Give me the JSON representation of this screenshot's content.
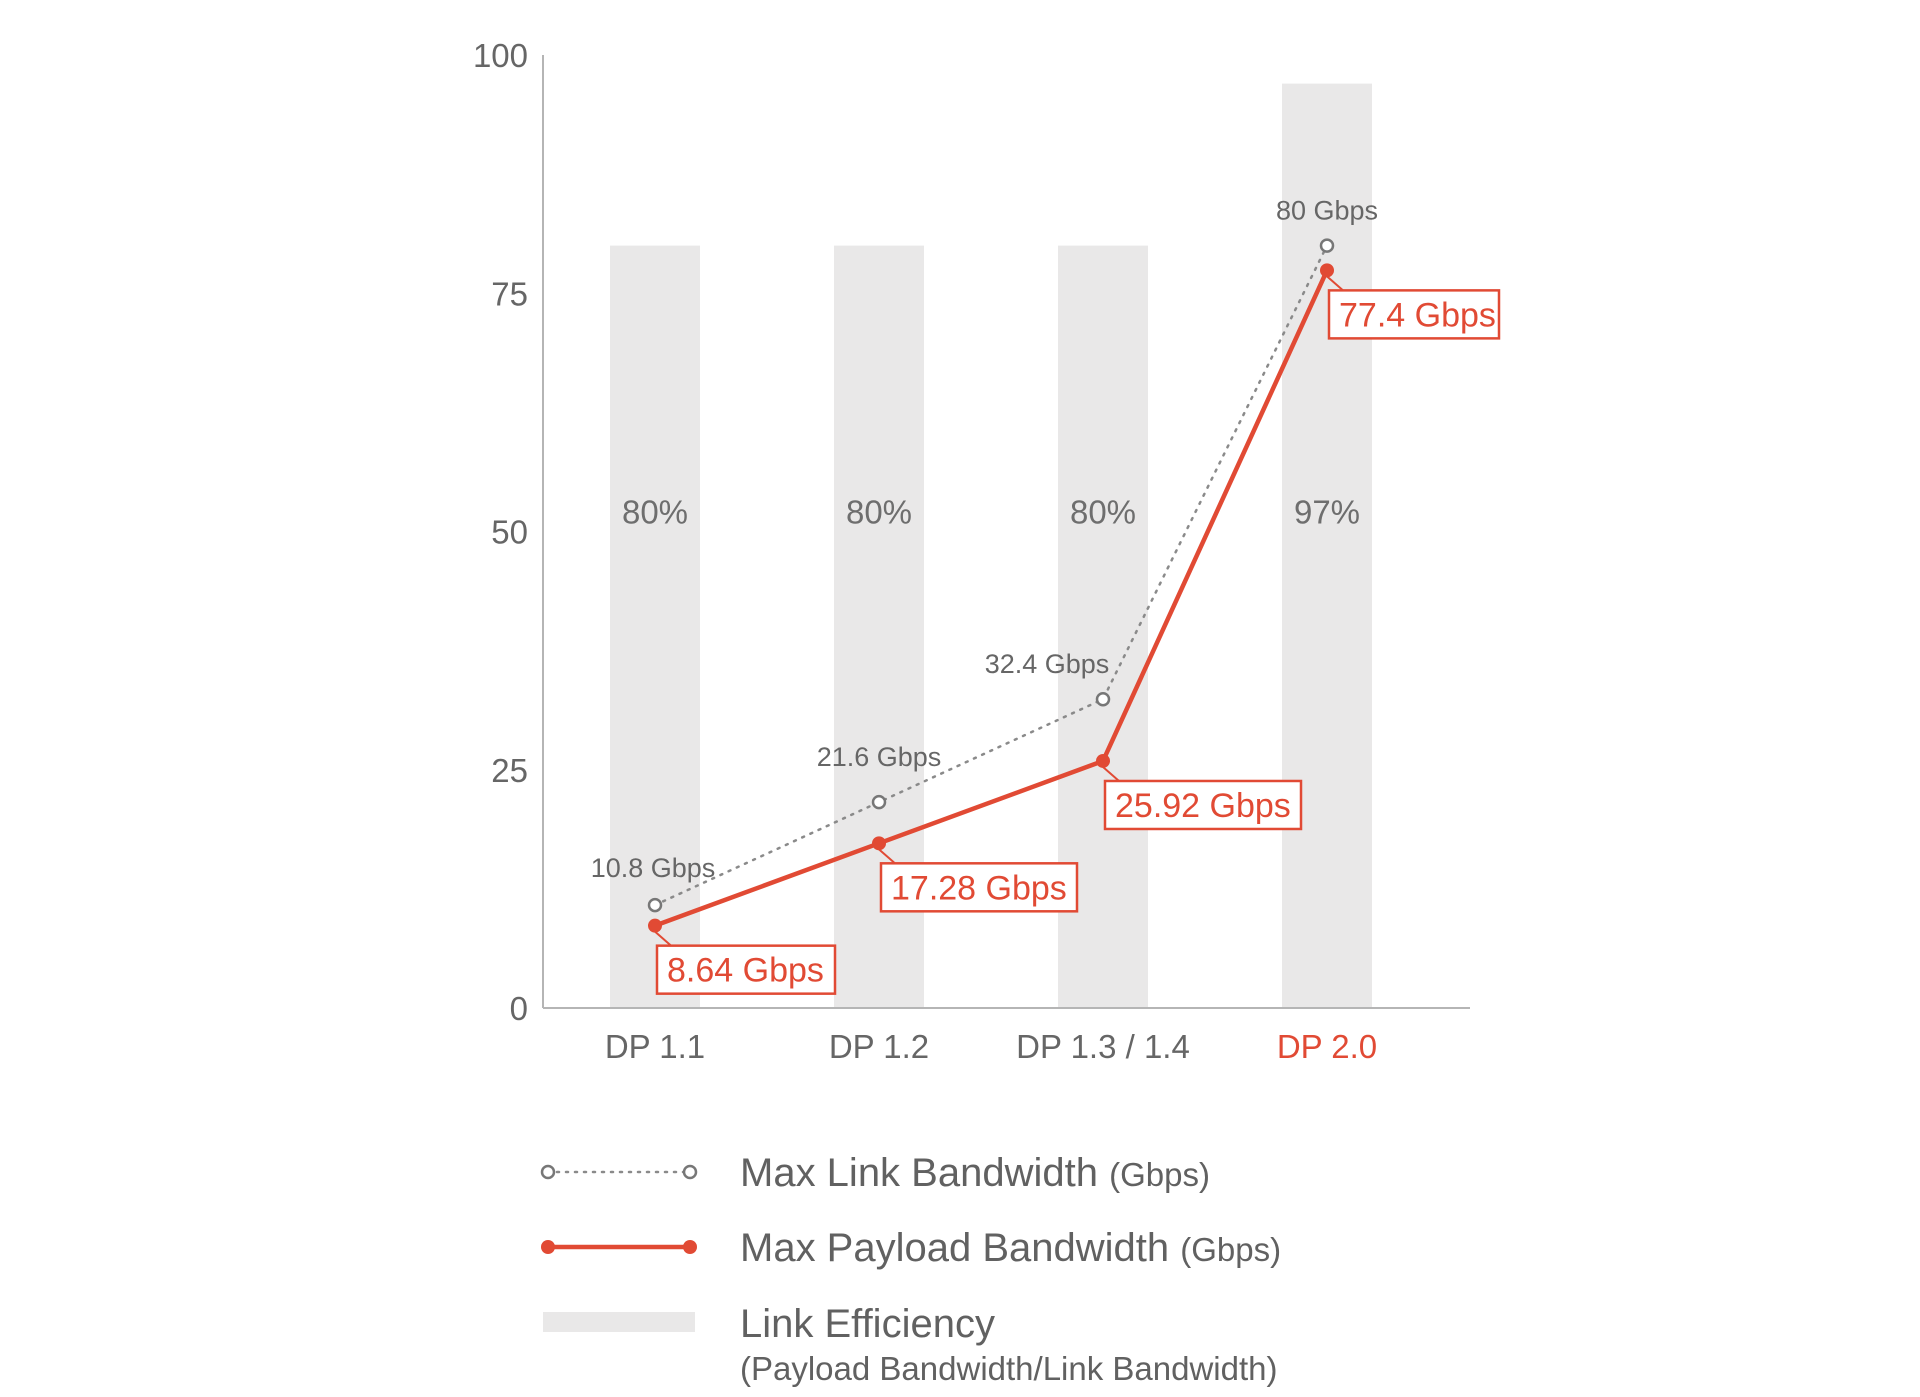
{
  "chart_data": {
    "type": "bar",
    "title": "",
    "xlabel": "",
    "ylabel": "",
    "ylim": [
      0,
      100
    ],
    "yticks": [
      "0",
      "25",
      "50",
      "75",
      "100"
    ],
    "grid": false,
    "categories": [
      "DP 1.1",
      "DP 1.2",
      "DP 1.3 / 1.4",
      "DP 2.0"
    ],
    "highlight_category": "DP 2.0",
    "bars": {
      "name": "Link Efficiency",
      "values": [
        80,
        80,
        80,
        97
      ],
      "labels": [
        "80%",
        "80%",
        "80%",
        "97%"
      ]
    },
    "series": [
      {
        "name": "Max Link Bandwidth",
        "unit": "(Gbps)",
        "style": "dotted-line-open-markers",
        "values": [
          10.8,
          21.6,
          32.4,
          80
        ],
        "labels": [
          "10.8 Gbps",
          "21.6 Gbps",
          "32.4 Gbps",
          "80 Gbps"
        ]
      },
      {
        "name": "Max Payload Bandwidth",
        "unit": "(Gbps)",
        "style": "solid-line-filled-markers",
        "values": [
          8.64,
          17.28,
          25.92,
          77.4
        ],
        "labels": [
          "8.64 Gbps",
          "17.28 Gbps",
          "25.92 Gbps",
          "77.4 Gbps"
        ]
      }
    ],
    "legend": {
      "placement": "bottom",
      "items": [
        {
          "main": "Max Link Bandwidth",
          "unit": "(Gbps)"
        },
        {
          "main": "Max Payload Bandwidth",
          "unit": "(Gbps)"
        },
        {
          "main": "Link Efficiency",
          "sub": "(Payload Bandwidth/Link Bandwidth)"
        }
      ]
    }
  },
  "colors": {
    "accent_red": "#e14a34",
    "bar_gray": "#e9e8e8",
    "axis": "#b5b5b5",
    "text_gray": "#666666",
    "dotted_gray": "#8a8a8a"
  }
}
